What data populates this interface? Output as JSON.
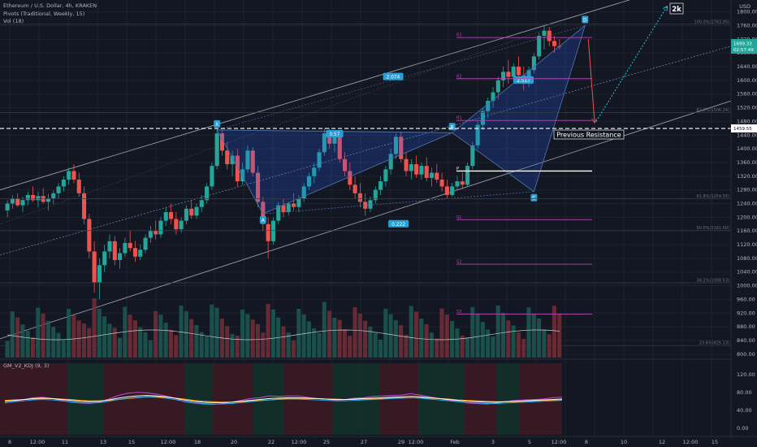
{
  "header": {
    "symbol_line": "Ethereum / U.S. Dollar, 4h, KRAKEN",
    "pivots_line": "Pivots (Traditional, Weekly, 15)",
    "vol_line": "Vol (18)",
    "kdj_line": "GM_V2_KDJ (9, 3)",
    "currency": "USD"
  },
  "chart_data": {
    "type": "candlestick",
    "price_axis": {
      "ticks": [
        "1800.00",
        "1760.00",
        "1720.00",
        "1680.00",
        "1640.00",
        "1600.00",
        "1560.00",
        "1520.00",
        "1480.00",
        "1440.00",
        "1400.00",
        "1360.00",
        "1320.00",
        "1280.00",
        "1240.00",
        "1200.00",
        "1160.00",
        "1120.00",
        "1080.00",
        "1040.00",
        "1000.00",
        "960.00",
        "920.00",
        "880.00",
        "840.00",
        "800.00"
      ],
      "values": [
        1800,
        1760,
        1720,
        1680,
        1640,
        1600,
        1560,
        1520,
        1480,
        1440,
        1400,
        1360,
        1320,
        1280,
        1240,
        1200,
        1160,
        1120,
        1080,
        1040,
        1000,
        960,
        920,
        880,
        840,
        800
      ],
      "range": [
        790,
        1830
      ]
    },
    "price_labels": {
      "current": "1699.33",
      "current2": "02:57:49",
      "resistance": "1459.55"
    },
    "kdj_axis": {
      "ticks": [
        "120.00",
        "80.00",
        "40.00",
        "0.00"
      ],
      "values": [
        120,
        80,
        40,
        0
      ],
      "range": [
        -15,
        145
      ]
    },
    "time_axis": [
      "8",
      "12:00",
      "11",
      "13",
      "15",
      "12:00",
      "18",
      "20",
      "22",
      "12:00",
      "25",
      "27",
      "29",
      "12:00",
      "Feb",
      "3",
      "5",
      "12:00",
      "8",
      "10",
      "12",
      "12:00",
      "15"
    ],
    "resistance_label": "Previous  Resistance",
    "target_label": "2k",
    "pattern": {
      "points": [
        "X",
        "A",
        "B",
        "C",
        "D"
      ],
      "ratios": [
        "0.57",
        "2.074",
        "0.222",
        "2.517"
      ]
    },
    "pivots": [
      "R3",
      "R2",
      "R1",
      "P",
      "S1",
      "S2",
      "S3"
    ],
    "fib_labels": [
      "100.0%(1763.95)",
      "61.8%(1506.24)",
      "61.8%(1254.55)",
      "50.0%(1161.50)",
      "38.2%(1008.53)",
      "23.6%(825.13)"
    ],
    "candles": [
      {
        "o": 1220,
        "h": 1250,
        "l": 1200,
        "c": 1240
      },
      {
        "o": 1240,
        "h": 1265,
        "l": 1225,
        "c": 1255
      },
      {
        "o": 1255,
        "h": 1270,
        "l": 1230,
        "c": 1235
      },
      {
        "o": 1235,
        "h": 1260,
        "l": 1215,
        "c": 1250
      },
      {
        "o": 1250,
        "h": 1275,
        "l": 1235,
        "c": 1265
      },
      {
        "o": 1265,
        "h": 1290,
        "l": 1245,
        "c": 1250
      },
      {
        "o": 1250,
        "h": 1275,
        "l": 1230,
        "c": 1262
      },
      {
        "o": 1262,
        "h": 1285,
        "l": 1240,
        "c": 1245
      },
      {
        "o": 1245,
        "h": 1268,
        "l": 1220,
        "c": 1255
      },
      {
        "o": 1255,
        "h": 1278,
        "l": 1238,
        "c": 1270
      },
      {
        "o": 1270,
        "h": 1300,
        "l": 1255,
        "c": 1290
      },
      {
        "o": 1290,
        "h": 1320,
        "l": 1275,
        "c": 1310
      },
      {
        "o": 1310,
        "h": 1345,
        "l": 1295,
        "c": 1335
      },
      {
        "o": 1335,
        "h": 1355,
        "l": 1300,
        "c": 1310
      },
      {
        "o": 1310,
        "h": 1330,
        "l": 1260,
        "c": 1270
      },
      {
        "o": 1270,
        "h": 1290,
        "l": 1180,
        "c": 1195
      },
      {
        "o": 1195,
        "h": 1210,
        "l": 1080,
        "c": 1100
      },
      {
        "o": 1100,
        "h": 1130,
        "l": 980,
        "c": 1010
      },
      {
        "o": 1010,
        "h": 1080,
        "l": 960,
        "c": 1060
      },
      {
        "o": 1060,
        "h": 1120,
        "l": 1040,
        "c": 1100
      },
      {
        "o": 1100,
        "h": 1150,
        "l": 1080,
        "c": 1130
      },
      {
        "o": 1130,
        "h": 1145,
        "l": 1060,
        "c": 1075
      },
      {
        "o": 1075,
        "h": 1110,
        "l": 1050,
        "c": 1095
      },
      {
        "o": 1095,
        "h": 1140,
        "l": 1085,
        "c": 1125
      },
      {
        "o": 1125,
        "h": 1160,
        "l": 1100,
        "c": 1110
      },
      {
        "o": 1110,
        "h": 1130,
        "l": 1070,
        "c": 1085
      },
      {
        "o": 1085,
        "h": 1120,
        "l": 1075,
        "c": 1105
      },
      {
        "o": 1105,
        "h": 1150,
        "l": 1095,
        "c": 1140
      },
      {
        "o": 1140,
        "h": 1175,
        "l": 1125,
        "c": 1160
      },
      {
        "o": 1160,
        "h": 1190,
        "l": 1135,
        "c": 1150
      },
      {
        "o": 1150,
        "h": 1200,
        "l": 1140,
        "c": 1190
      },
      {
        "o": 1190,
        "h": 1230,
        "l": 1175,
        "c": 1215
      },
      {
        "o": 1215,
        "h": 1240,
        "l": 1180,
        "c": 1195
      },
      {
        "o": 1195,
        "h": 1215,
        "l": 1150,
        "c": 1165
      },
      {
        "o": 1165,
        "h": 1200,
        "l": 1155,
        "c": 1190
      },
      {
        "o": 1190,
        "h": 1235,
        "l": 1180,
        "c": 1225
      },
      {
        "o": 1225,
        "h": 1250,
        "l": 1195,
        "c": 1205
      },
      {
        "o": 1205,
        "h": 1240,
        "l": 1195,
        "c": 1230
      },
      {
        "o": 1230,
        "h": 1265,
        "l": 1215,
        "c": 1250
      },
      {
        "o": 1250,
        "h": 1300,
        "l": 1240,
        "c": 1290
      },
      {
        "o": 1290,
        "h": 1360,
        "l": 1280,
        "c": 1350
      },
      {
        "o": 1350,
        "h": 1460,
        "l": 1340,
        "c": 1445
      },
      {
        "o": 1445,
        "h": 1455,
        "l": 1380,
        "c": 1395
      },
      {
        "o": 1395,
        "h": 1420,
        "l": 1340,
        "c": 1355
      },
      {
        "o": 1355,
        "h": 1395,
        "l": 1320,
        "c": 1380
      },
      {
        "o": 1380,
        "h": 1400,
        "l": 1290,
        "c": 1305
      },
      {
        "o": 1305,
        "h": 1360,
        "l": 1295,
        "c": 1340
      },
      {
        "o": 1340,
        "h": 1410,
        "l": 1330,
        "c": 1395
      },
      {
        "o": 1395,
        "h": 1405,
        "l": 1320,
        "c": 1330
      },
      {
        "o": 1330,
        "h": 1350,
        "l": 1230,
        "c": 1245
      },
      {
        "o": 1245,
        "h": 1260,
        "l": 1160,
        "c": 1180
      },
      {
        "o": 1180,
        "h": 1200,
        "l": 1080,
        "c": 1130
      },
      {
        "o": 1130,
        "h": 1200,
        "l": 1120,
        "c": 1190
      },
      {
        "o": 1190,
        "h": 1245,
        "l": 1180,
        "c": 1235
      },
      {
        "o": 1235,
        "h": 1255,
        "l": 1200,
        "c": 1215
      },
      {
        "o": 1215,
        "h": 1245,
        "l": 1205,
        "c": 1240
      },
      {
        "o": 1240,
        "h": 1270,
        "l": 1220,
        "c": 1230
      },
      {
        "o": 1230,
        "h": 1265,
        "l": 1215,
        "c": 1255
      },
      {
        "o": 1255,
        "h": 1300,
        "l": 1245,
        "c": 1290
      },
      {
        "o": 1290,
        "h": 1330,
        "l": 1280,
        "c": 1320
      },
      {
        "o": 1320,
        "h": 1360,
        "l": 1300,
        "c": 1345
      },
      {
        "o": 1345,
        "h": 1400,
        "l": 1335,
        "c": 1390
      },
      {
        "o": 1390,
        "h": 1460,
        "l": 1380,
        "c": 1445
      },
      {
        "o": 1445,
        "h": 1460,
        "l": 1400,
        "c": 1415
      },
      {
        "o": 1415,
        "h": 1450,
        "l": 1390,
        "c": 1440
      },
      {
        "o": 1440,
        "h": 1455,
        "l": 1360,
        "c": 1370
      },
      {
        "o": 1370,
        "h": 1390,
        "l": 1320,
        "c": 1335
      },
      {
        "o": 1335,
        "h": 1360,
        "l": 1280,
        "c": 1295
      },
      {
        "o": 1295,
        "h": 1320,
        "l": 1255,
        "c": 1270
      },
      {
        "o": 1270,
        "h": 1300,
        "l": 1230,
        "c": 1245
      },
      {
        "o": 1245,
        "h": 1270,
        "l": 1205,
        "c": 1225
      },
      {
        "o": 1225,
        "h": 1260,
        "l": 1215,
        "c": 1250
      },
      {
        "o": 1250,
        "h": 1290,
        "l": 1240,
        "c": 1280
      },
      {
        "o": 1280,
        "h": 1320,
        "l": 1265,
        "c": 1305
      },
      {
        "o": 1305,
        "h": 1350,
        "l": 1290,
        "c": 1340
      },
      {
        "o": 1340,
        "h": 1400,
        "l": 1325,
        "c": 1385
      },
      {
        "o": 1385,
        "h": 1445,
        "l": 1370,
        "c": 1435
      },
      {
        "o": 1435,
        "h": 1450,
        "l": 1360,
        "c": 1370
      },
      {
        "o": 1370,
        "h": 1390,
        "l": 1320,
        "c": 1335
      },
      {
        "o": 1335,
        "h": 1370,
        "l": 1310,
        "c": 1355
      },
      {
        "o": 1355,
        "h": 1380,
        "l": 1315,
        "c": 1325
      },
      {
        "o": 1325,
        "h": 1360,
        "l": 1310,
        "c": 1350
      },
      {
        "o": 1350,
        "h": 1375,
        "l": 1305,
        "c": 1315
      },
      {
        "o": 1315,
        "h": 1345,
        "l": 1290,
        "c": 1330
      },
      {
        "o": 1330,
        "h": 1355,
        "l": 1300,
        "c": 1310
      },
      {
        "o": 1310,
        "h": 1330,
        "l": 1275,
        "c": 1290
      },
      {
        "o": 1290,
        "h": 1310,
        "l": 1255,
        "c": 1265
      },
      {
        "o": 1265,
        "h": 1300,
        "l": 1260,
        "c": 1290
      },
      {
        "o": 1290,
        "h": 1320,
        "l": 1280,
        "c": 1305
      },
      {
        "o": 1305,
        "h": 1330,
        "l": 1285,
        "c": 1295
      },
      {
        "o": 1295,
        "h": 1360,
        "l": 1290,
        "c": 1350
      },
      {
        "o": 1350,
        "h": 1420,
        "l": 1340,
        "c": 1410
      },
      {
        "o": 1410,
        "h": 1480,
        "l": 1400,
        "c": 1470
      },
      {
        "o": 1470,
        "h": 1520,
        "l": 1455,
        "c": 1510
      },
      {
        "o": 1510,
        "h": 1550,
        "l": 1490,
        "c": 1540
      },
      {
        "o": 1540,
        "h": 1580,
        "l": 1520,
        "c": 1565
      },
      {
        "o": 1565,
        "h": 1610,
        "l": 1545,
        "c": 1600
      },
      {
        "o": 1600,
        "h": 1640,
        "l": 1580,
        "c": 1625
      },
      {
        "o": 1625,
        "h": 1660,
        "l": 1590,
        "c": 1610
      },
      {
        "o": 1610,
        "h": 1650,
        "l": 1595,
        "c": 1640
      },
      {
        "o": 1640,
        "h": 1670,
        "l": 1600,
        "c": 1615
      },
      {
        "o": 1615,
        "h": 1640,
        "l": 1570,
        "c": 1590
      },
      {
        "o": 1590,
        "h": 1640,
        "l": 1580,
        "c": 1630
      },
      {
        "o": 1630,
        "h": 1680,
        "l": 1620,
        "c": 1670
      },
      {
        "o": 1670,
        "h": 1740,
        "l": 1660,
        "c": 1730
      },
      {
        "o": 1730,
        "h": 1760,
        "l": 1690,
        "c": 1745
      },
      {
        "o": 1745,
        "h": 1755,
        "l": 1700,
        "c": 1715
      },
      {
        "o": 1715,
        "h": 1730,
        "l": 1680,
        "c": 1700
      },
      {
        "o": 1700,
        "h": 1720,
        "l": 1690,
        "c": 1699
      }
    ],
    "kdj": {
      "k": [
        60,
        62,
        64,
        66,
        67,
        66,
        64,
        62,
        60,
        59,
        60,
        63,
        67,
        70,
        72,
        73,
        72,
        70,
        67,
        63,
        60,
        58,
        57,
        57,
        58,
        60,
        62,
        64,
        66,
        67,
        68,
        68,
        67,
        66,
        65,
        64,
        64,
        65,
        66,
        67,
        68,
        69,
        70,
        71,
        70,
        68,
        66,
        64,
        62,
        60,
        59,
        58,
        58,
        59,
        60,
        61,
        62,
        63,
        64,
        65
      ],
      "d": [
        62,
        63,
        64,
        65,
        66,
        66,
        65,
        64,
        62,
        61,
        61,
        62,
        64,
        66,
        68,
        70,
        70,
        69,
        67,
        65,
        62,
        60,
        59,
        58,
        58,
        59,
        60,
        62,
        63,
        65,
        66,
        66,
        66,
        66,
        65,
        65,
        64,
        64,
        65,
        65,
        66,
        67,
        68,
        68,
        68,
        67,
        66,
        65,
        63,
        62,
        61,
        60,
        59,
        59,
        59,
        60,
        61,
        62,
        62,
        63
      ],
      "j": [
        56,
        60,
        64,
        68,
        69,
        66,
        62,
        58,
        56,
        55,
        58,
        65,
        73,
        78,
        80,
        79,
        76,
        72,
        67,
        59,
        56,
        54,
        53,
        55,
        58,
        62,
        66,
        68,
        72,
        71,
        72,
        72,
        69,
        66,
        65,
        62,
        64,
        67,
        68,
        71,
        72,
        73,
        74,
        77,
        74,
        70,
        66,
        62,
        60,
        56,
        55,
        54,
        56,
        59,
        62,
        63,
        64,
        65,
        68,
        69
      ]
    }
  }
}
